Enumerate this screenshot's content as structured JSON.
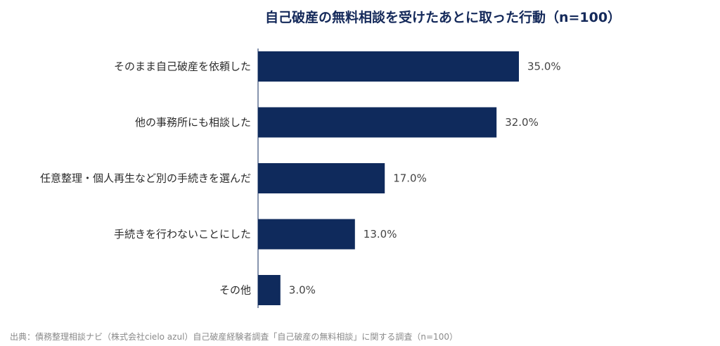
{
  "chart_data": {
    "type": "bar",
    "orientation": "horizontal",
    "title": "自己破産の無料相談を受けたあとに取った行動（n=100）",
    "categories": [
      "そのまま自己破産を依頼した",
      "他の事務所にも相談した",
      "任意整理・個人再生など別の手続きを選んだ",
      "手続きを行わないことにした",
      "その他"
    ],
    "values": [
      35.0,
      32.0,
      17.0,
      13.0,
      3.0
    ],
    "value_labels": [
      "35.0%",
      "32.0%",
      "17.0%",
      "13.0%",
      "3.0%"
    ],
    "xlim": [
      0,
      50
    ],
    "grid": false,
    "legend": "none",
    "bar_color": "#0f2a5c"
  },
  "source": "出典：債務整理相談ナビ（株式会社cielo azul）自己破産経験者調査「自己破産の無料相談」に関する調査（n=100）"
}
